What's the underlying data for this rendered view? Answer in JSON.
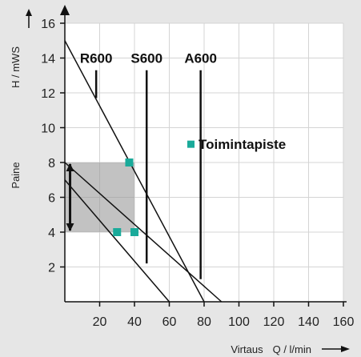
{
  "chart_data": {
    "type": "line",
    "xlabel_prefix": "Virtaus",
    "xlabel_unit": "Q / l/min",
    "ylabel_prefix": "Paine",
    "ylabel_unit": "H / mWS",
    "xlim": [
      0,
      160
    ],
    "ylim": [
      0,
      16
    ],
    "x_ticks": [
      20,
      40,
      60,
      80,
      100,
      120,
      140,
      160
    ],
    "y_ticks": [
      2,
      4,
      6,
      8,
      10,
      12,
      14,
      16
    ],
    "grid": true,
    "curves": [
      {
        "points": [
          [
            0,
            15
          ],
          [
            80,
            0
          ]
        ]
      },
      {
        "points": [
          [
            0,
            7
          ],
          [
            60,
            0
          ]
        ]
      },
      {
        "points": [
          [
            0,
            8
          ],
          [
            90,
            0
          ]
        ]
      }
    ],
    "model_markers": [
      {
        "label": "R600",
        "x": 18,
        "y_top": 13.3,
        "y_bottom": 11.7
      },
      {
        "label": "S600",
        "x": 47,
        "y_top": 13.3,
        "y_bottom": 2.2
      },
      {
        "label": "A600",
        "x": 78,
        "y_top": 13.3,
        "y_bottom": 1.3
      }
    ],
    "operating_points": [
      [
        37,
        8
      ],
      [
        30,
        4
      ],
      [
        40,
        4
      ]
    ],
    "shaded_range": {
      "x": [
        0,
        40
      ],
      "y": [
        4,
        8
      ]
    },
    "pressure_range_arrow": {
      "x": 3,
      "y": [
        4,
        8
      ]
    },
    "legend": {
      "label": "Toimintapiste",
      "color": "#1aaa9a",
      "x": 80,
      "y": 9.05
    }
  }
}
